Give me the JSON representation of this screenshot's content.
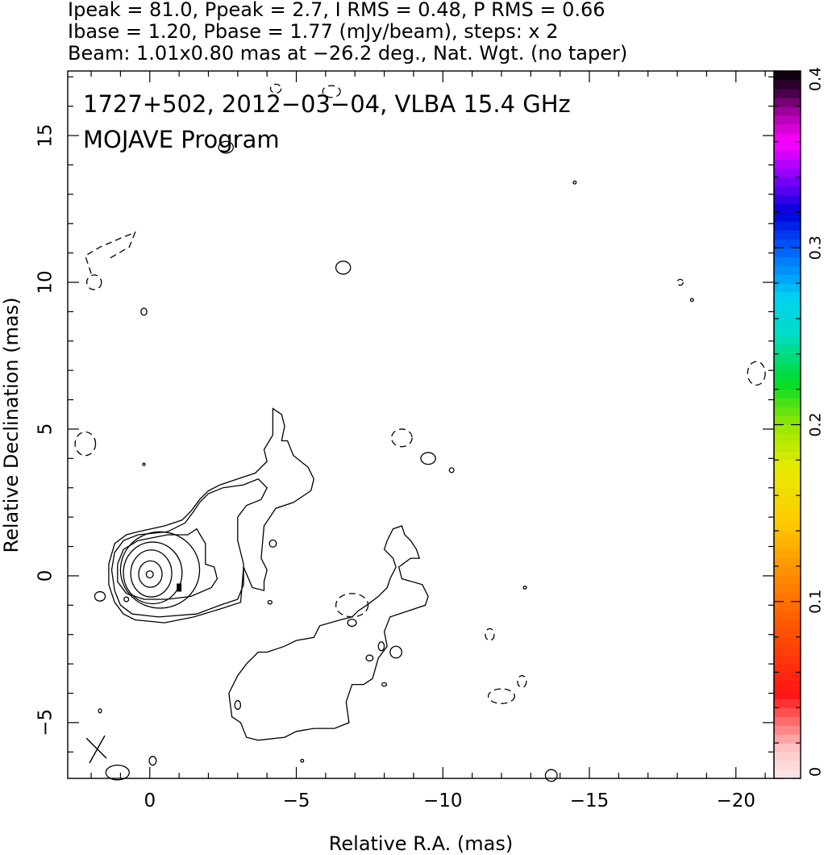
{
  "header": {
    "line1": "Ipeak = 81.0, Ppeak = 2.7, I RMS = 0.48, P RMS = 0.66",
    "line2": "Ibase = 1.20, Pbase = 1.77 (mJy/beam), steps: x 2",
    "line3": "Beam: 1.01x0.80 mas at −26.2 deg., Nat. Wgt. (no taper)"
  },
  "annotations": {
    "title": "1727+502, 2012−03−04, VLBA 15.4 GHz",
    "program": "MOJAVE Program"
  },
  "axes": {
    "xlabel": "Relative R.A. (mas)",
    "ylabel": "Relative Declination (mas)"
  },
  "colorbar": {
    "range": [
      0,
      0.4
    ],
    "ticks": [
      "0",
      "0.1",
      "0.2",
      "0.3",
      "0.4"
    ]
  },
  "chart_data": {
    "type": "contour",
    "title": "1727+502, 2012−03−04, VLBA 15.4 GHz",
    "xlabel": "Relative R.A. (mas)",
    "ylabel": "Relative Declination (mas)",
    "xlim": [
      2.8,
      -21.3
    ],
    "ylim": [
      -6.9,
      17.2
    ],
    "x_ticks": [
      0,
      -5,
      -10,
      -15,
      -20
    ],
    "x_tick_labels": [
      "0",
      "−5",
      "−10",
      "−15",
      "−20"
    ],
    "y_ticks": [
      -5,
      0,
      5,
      10,
      15
    ],
    "y_tick_labels": [
      "−5",
      "0",
      "5",
      "10",
      "15"
    ],
    "ipeak_mJy_per_beam": 81.0,
    "ppeak_mJy_per_beam": 2.7,
    "i_rms": 0.48,
    "p_rms": 0.66,
    "ibase": 1.2,
    "pbase": 1.77,
    "contour_step_factor": 2,
    "beam": {
      "major_mas": 1.01,
      "minor_mas": 0.8,
      "pa_deg": -26.2,
      "weighting": "Nat. Wgt. (no taper)"
    },
    "colorbar_range": [
      0,
      0.4
    ],
    "contours": {
      "core_centers": [
        [
          0.0,
          0.05
        ],
        [
          -0.02,
          0.06
        ],
        [
          -0.05,
          0.08
        ],
        [
          -0.1,
          0.1
        ],
        [
          -0.35,
          0.2
        ]
      ],
      "core_rx": [
        0.12,
        0.4,
        0.7,
        1.0,
        1.35
      ],
      "core_ry": [
        0.12,
        0.45,
        0.8,
        1.05,
        1.3
      ],
      "jet_l2": [
        [
          -1.9,
          0.4
        ],
        [
          -2.2,
          0.3
        ],
        [
          -2.3,
          -0.1
        ],
        [
          -2.1,
          -0.4
        ],
        [
          -1.4,
          -0.7
        ],
        [
          -0.6,
          -0.8
        ],
        [
          0.2,
          -0.8
        ],
        [
          0.8,
          -0.6
        ],
        [
          1.1,
          -0.2
        ],
        [
          1.1,
          0.4
        ],
        [
          0.9,
          0.9
        ],
        [
          0.4,
          1.2
        ],
        [
          -0.6,
          1.4
        ],
        [
          -1.3,
          1.4
        ],
        [
          -1.6,
          1.6
        ],
        [
          -1.9,
          1.1
        ]
      ],
      "jet_l1": [
        [
          -4.0,
          3.0
        ],
        [
          -3.8,
          2.6
        ],
        [
          -3.3,
          2.4
        ],
        [
          -3.0,
          2.0
        ],
        [
          -3.0,
          1.2
        ],
        [
          -3.2,
          0.4
        ],
        [
          -3.2,
          -0.3
        ],
        [
          -3.0,
          -0.8
        ],
        [
          -2.4,
          -1.0
        ],
        [
          -1.6,
          -1.3
        ],
        [
          -0.3,
          -1.4
        ],
        [
          0.6,
          -1.3
        ],
        [
          1.0,
          -1.0
        ],
        [
          1.2,
          -0.5
        ],
        [
          1.3,
          0.2
        ],
        [
          1.2,
          0.8
        ],
        [
          0.9,
          1.2
        ],
        [
          0.4,
          1.4
        ],
        [
          -0.6,
          1.5
        ],
        [
          -1.2,
          1.8
        ],
        [
          -1.5,
          2.2
        ],
        [
          -1.7,
          2.5
        ],
        [
          -2.0,
          2.8
        ],
        [
          -2.5,
          3.0
        ],
        [
          -3.2,
          3.1
        ],
        [
          -3.7,
          3.3
        ]
      ],
      "jet_l0": [
        [
          -4.2,
          5.7
        ],
        [
          -4.5,
          5.5
        ],
        [
          -4.6,
          5.1
        ],
        [
          -4.5,
          4.6
        ],
        [
          -4.7,
          4.6
        ],
        [
          -4.9,
          4.1
        ],
        [
          -5.4,
          3.7
        ],
        [
          -5.6,
          3.3
        ],
        [
          -5.5,
          2.9
        ],
        [
          -4.9,
          2.5
        ],
        [
          -4.3,
          2.3
        ],
        [
          -3.9,
          1.7
        ],
        [
          -3.8,
          0.6
        ],
        [
          -4.0,
          0.2
        ],
        [
          -3.9,
          -0.2
        ],
        [
          -3.9,
          -0.5
        ],
        [
          -3.5,
          -0.4
        ],
        [
          -3.2,
          0.3
        ],
        [
          -3.1,
          -0.9
        ],
        [
          -2.5,
          -1.1
        ],
        [
          -1.5,
          -1.4
        ],
        [
          -0.5,
          -1.6
        ],
        [
          0.5,
          -1.5
        ],
        [
          0.9,
          -1.3
        ],
        [
          1.2,
          -0.9
        ],
        [
          1.4,
          -0.3
        ],
        [
          1.4,
          0.4
        ],
        [
          1.2,
          1.1
        ],
        [
          0.8,
          1.4
        ],
        [
          0.4,
          1.5
        ],
        [
          -0.5,
          1.7
        ],
        [
          -1.1,
          1.9
        ],
        [
          -1.4,
          2.2
        ],
        [
          -1.7,
          2.6
        ],
        [
          -2.0,
          2.9
        ],
        [
          -2.4,
          3.1
        ],
        [
          -3.0,
          3.3
        ],
        [
          -3.6,
          3.5
        ],
        [
          -4.0,
          3.9
        ],
        [
          -3.9,
          4.3
        ],
        [
          -4.2,
          4.8
        ],
        [
          -4.2,
          5.4
        ]
      ],
      "south_l0": [
        [
          -8.6,
          1.7
        ],
        [
          -8.7,
          1.4
        ],
        [
          -8.9,
          1.2
        ],
        [
          -9.1,
          0.9
        ],
        [
          -9.2,
          0.6
        ],
        [
          -8.9,
          0.6
        ],
        [
          -8.5,
          0.3
        ],
        [
          -8.6,
          -0.1
        ],
        [
          -9.3,
          -0.3
        ],
        [
          -9.5,
          -0.7
        ],
        [
          -9.4,
          -1.0
        ],
        [
          -8.8,
          -1.2
        ],
        [
          -8.2,
          -1.4
        ],
        [
          -8.0,
          -1.9
        ],
        [
          -8.1,
          -2.4
        ],
        [
          -7.8,
          -2.8
        ],
        [
          -7.6,
          -3.5
        ],
        [
          -7.3,
          -3.7
        ],
        [
          -6.9,
          -3.7
        ],
        [
          -6.7,
          -4.3
        ],
        [
          -6.8,
          -5.0
        ],
        [
          -6.3,
          -5.2
        ],
        [
          -5.6,
          -5.2
        ],
        [
          -5.0,
          -5.3
        ],
        [
          -4.6,
          -5.5
        ],
        [
          -3.7,
          -5.6
        ],
        [
          -3.3,
          -5.5
        ],
        [
          -3.1,
          -5.0
        ],
        [
          -2.8,
          -4.8
        ],
        [
          -2.7,
          -4.0
        ],
        [
          -3.0,
          -3.4
        ],
        [
          -3.3,
          -3.0
        ],
        [
          -3.7,
          -2.6
        ],
        [
          -4.0,
          -2.6
        ],
        [
          -4.6,
          -2.4
        ],
        [
          -5.0,
          -2.2
        ],
        [
          -5.6,
          -2.1
        ],
        [
          -5.8,
          -1.7
        ],
        [
          -6.5,
          -1.5
        ],
        [
          -6.9,
          -1.4
        ],
        [
          -7.1,
          -1.2
        ],
        [
          -7.4,
          -1.0
        ],
        [
          -7.8,
          -0.7
        ],
        [
          -8.1,
          -0.4
        ],
        [
          -8.2,
          -0.1
        ],
        [
          -8.4,
          0.3
        ],
        [
          -8.3,
          0.6
        ],
        [
          -8.0,
          0.9
        ],
        [
          -8.1,
          1.2
        ],
        [
          -8.3,
          1.6
        ]
      ],
      "islands_pos": [
        [
          -6.6,
          10.5,
          0.25,
          0.22
        ],
        [
          -9.5,
          4.0,
          0.25,
          0.2
        ],
        [
          -4.2,
          1.1,
          0.12,
          0.12
        ],
        [
          -6.9,
          -1.6,
          0.15,
          0.12
        ],
        [
          -7.9,
          -2.4,
          0.1,
          0.15
        ],
        [
          -8.4,
          -2.6,
          0.2,
          0.2
        ],
        [
          -7.5,
          -2.8,
          0.12,
          0.1
        ],
        [
          -8.0,
          -3.7,
          0.08,
          0.06
        ],
        [
          -3.0,
          -4.4,
          0.1,
          0.15
        ],
        [
          -2.6,
          14.6,
          0.25,
          0.2
        ],
        [
          -4.1,
          -0.9,
          0.07,
          0.06
        ],
        [
          -12.8,
          -0.4,
          0.05,
          0.05
        ],
        [
          -14.5,
          13.4,
          0.05,
          0.05
        ],
        [
          -18.5,
          9.4,
          0.05,
          0.05
        ],
        [
          -5.2,
          -6.3,
          0.05,
          0.05
        ],
        [
          0.2,
          9.0,
          0.1,
          0.12
        ],
        [
          0.2,
          3.8,
          0.02,
          0.04
        ],
        [
          1.7,
          -4.6,
          0.05,
          0.07
        ],
        [
          1.7,
          -0.7,
          0.18,
          0.16
        ],
        [
          0.8,
          -0.8,
          0.08,
          0.08
        ],
        [
          -10.3,
          3.6,
          0.08,
          0.08
        ],
        [
          -0.1,
          -6.3,
          0.12,
          0.15
        ],
        [
          -13.7,
          -6.8,
          0.2,
          0.2
        ],
        [
          1.1,
          -6.7,
          0.4,
          0.25
        ]
      ],
      "islands_neg": [
        [
          -8.6,
          4.7,
          0.35,
          0.3
        ],
        [
          -12.0,
          -4.1,
          0.45,
          0.25
        ],
        [
          -12.7,
          -3.6,
          0.15,
          0.2
        ],
        [
          -11.6,
          -2.0,
          0.15,
          0.2
        ],
        [
          -20.7,
          6.9,
          0.3,
          0.4
        ],
        [
          -6.9,
          -1.0,
          0.55,
          0.4
        ],
        [
          2.2,
          4.5,
          0.35,
          0.4
        ],
        [
          1.9,
          10.0,
          0.25,
          0.25
        ],
        [
          -4.3,
          16.6,
          0.18,
          0.15
        ],
        [
          -18.1,
          10.0,
          0.1,
          0.1
        ],
        [
          -6.2,
          16.5,
          0.3,
          0.2
        ]
      ],
      "dashed_paths": [
        [
          [
            2.0,
            10.3
          ],
          [
            2.2,
            10.9
          ],
          [
            1.7,
            11.2
          ],
          [
            1.0,
            11.5
          ],
          [
            0.5,
            11.7
          ],
          [
            0.7,
            11.2
          ],
          [
            1.4,
            10.8
          ]
        ]
      ],
      "core_marker": [
        -1.0,
        -0.4
      ]
    }
  }
}
